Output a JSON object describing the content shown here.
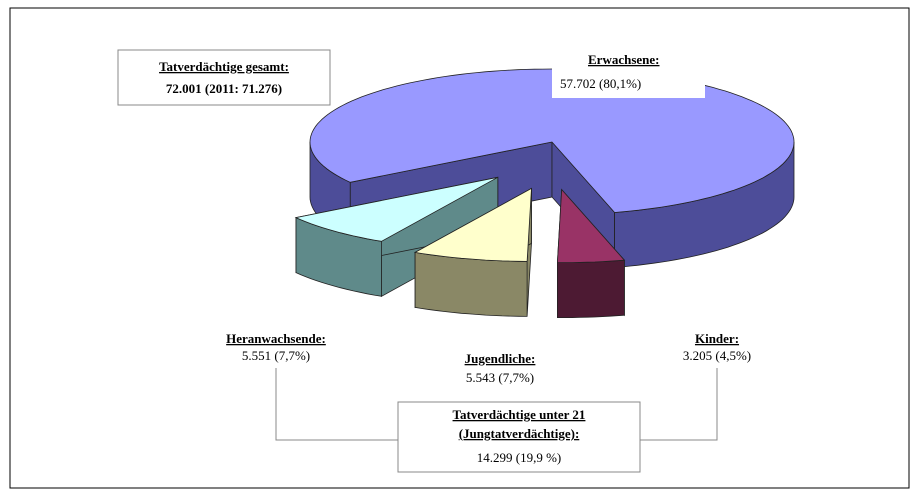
{
  "chart_data": {
    "type": "pie",
    "categories": [
      "Erwachsene:",
      "Heranwachsende:",
      "Jugendliche:",
      "Kinder:"
    ],
    "values": [
      57702,
      5551,
      5543,
      3205
    ],
    "value_labels": [
      "57.702 (80,1%)",
      "5.551 (7,7%)",
      "5.543 (7,7%)",
      "3.205 (4,5%)"
    ],
    "colors": [
      "#9999ff",
      "#ccffff",
      "#ffffcc",
      "#993366"
    ],
    "side_colors": [
      "#4d4d99",
      "#5f8a8a",
      "#8a8866",
      "#4d1a33"
    ],
    "exploded": [
      false,
      true,
      true,
      true
    ],
    "total_box": {
      "title": "Tatverdächtige gesamt:",
      "text": "72.001 (2011: 71.276)"
    },
    "group_box": {
      "lines": [
        "Tatverdächtige unter 21",
        "(Jungtatverdächtige):",
        "14.299 (19,9 %)"
      ]
    }
  }
}
